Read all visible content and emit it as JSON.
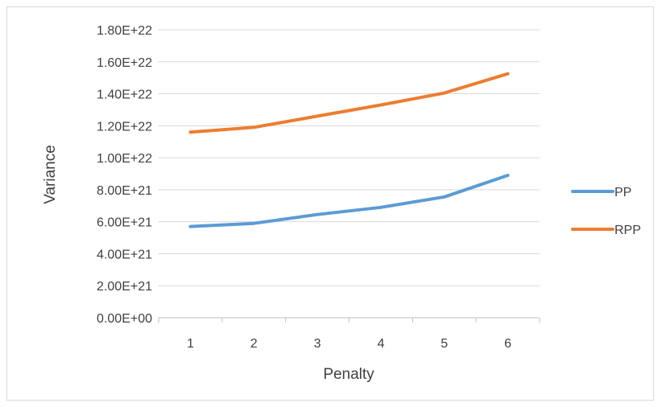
{
  "chart_data": {
    "type": "line",
    "title": "",
    "xlabel": "Penalty",
    "ylabel": "Variance",
    "x": [
      1,
      2,
      3,
      4,
      5,
      6
    ],
    "x_tick_labels": [
      "1",
      "2",
      "3",
      "4",
      "5",
      "6"
    ],
    "ylim": [
      0,
      1.8e+22
    ],
    "y_ticks": [
      0,
      2e+21,
      4e+21,
      6e+21,
      8e+21,
      1e+22,
      1.2e+22,
      1.4e+22,
      1.6e+22,
      1.8e+22
    ],
    "y_tick_labels": [
      "0.00E+00",
      "2.00E+21",
      "4.00E+21",
      "6.00E+21",
      "8.00E+21",
      "1.00E+22",
      "1.20E+22",
      "1.40E+22",
      "1.60E+22",
      "1.80E+22"
    ],
    "grid": true,
    "legend_position": "right",
    "series": [
      {
        "name": "PP",
        "color": "#5b9bd5",
        "values": [
          5.7e+21,
          5.9e+21,
          6.45e+21,
          6.9e+21,
          7.55e+21,
          8.9e+21
        ]
      },
      {
        "name": "RPP",
        "color": "#ed7d31",
        "values": [
          1.16e+22,
          1.19e+22,
          1.26e+22,
          1.33e+22,
          1.405e+22,
          1.525e+22
        ]
      }
    ]
  }
}
